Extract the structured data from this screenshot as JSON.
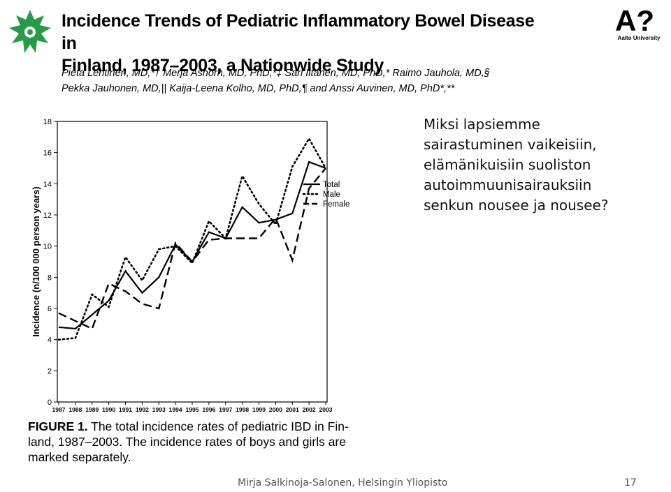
{
  "slide": {
    "title_line1": "Incidence Trends of Pediatric Inflammatory Bowel Disease in",
    "title_line2": "Finland, 1987–2003, a Nationwide Study",
    "authors_line1": "Pieta Lehtinen, MD,*† Merja Ashorn, MD, PhD,*‡ Sari Iltanen, MD, PhD,* Raimo Jauhola, MD,§",
    "authors_line2": "Pekka Jauhonen, MD,|| Kaija-Leena Kolho, MD, PhD,¶ and Anssi Auvinen, MD, PhD*,**",
    "aalto_mark": "A?",
    "aalto_caption": "Aalto University",
    "question_lines": [
      "Miksi lapsiemme",
      "sairastuminen  vaikeisiin,",
      "elämänikuisiin  suoliston",
      "autoimmuunisairauksiin",
      "senkun nousee ja nousee?"
    ],
    "caption_bold": "FIGURE 1.",
    "caption_line1": " The total incidence rates of pediatric IBD in Fin-",
    "caption_line2": "land, 1987–2003. The incidence rates of boys and girls are",
    "caption_line3": "marked separately.",
    "footer_text": "Mirja Salkinoja-Salonen, Helsingin Yliopisto",
    "page_number": "17",
    "colors": {
      "brand_green": "#2a9a4a",
      "aalto_red": "#e3001b",
      "text": "#000000",
      "footer": "#555555"
    }
  },
  "chart_data": {
    "type": "line",
    "ylabel": "Incidence (n/100 000 person years)",
    "xlabel": "",
    "title": "",
    "ylim": [
      0,
      18
    ],
    "yticks": [
      "0",
      "2",
      "4",
      "6",
      "8",
      "10",
      "12",
      "14",
      "16",
      "18"
    ],
    "x": [
      "1987",
      "1988",
      "1989",
      "1990",
      "1991",
      "1992",
      "1993",
      "1994",
      "1995",
      "1996",
      "1997",
      "1998",
      "1999",
      "2000",
      "2001",
      "2002",
      "2003"
    ],
    "legend": "top-right inside plot",
    "grid": false,
    "series": [
      {
        "name": "Total",
        "style": "solid",
        "values": [
          4.8,
          4.7,
          5.6,
          6.5,
          8.4,
          7.0,
          8.0,
          10.1,
          9.0,
          10.9,
          10.5,
          12.5,
          11.5,
          11.7,
          12.1,
          15.4,
          15.0
        ]
      },
      {
        "name": "Male",
        "style": "dotted",
        "values": [
          4.0,
          4.1,
          6.9,
          6.1,
          9.3,
          7.8,
          9.8,
          10.0,
          8.9,
          11.6,
          10.5,
          14.5,
          12.7,
          11.4,
          15.1,
          16.9,
          15.0
        ]
      },
      {
        "name": "Female",
        "style": "dashed",
        "values": [
          5.7,
          5.2,
          4.7,
          7.6,
          7.1,
          6.3,
          6.0,
          10.2,
          9.0,
          10.4,
          10.5,
          10.5,
          10.5,
          11.8,
          9.1,
          13.7,
          15.0
        ]
      }
    ]
  }
}
